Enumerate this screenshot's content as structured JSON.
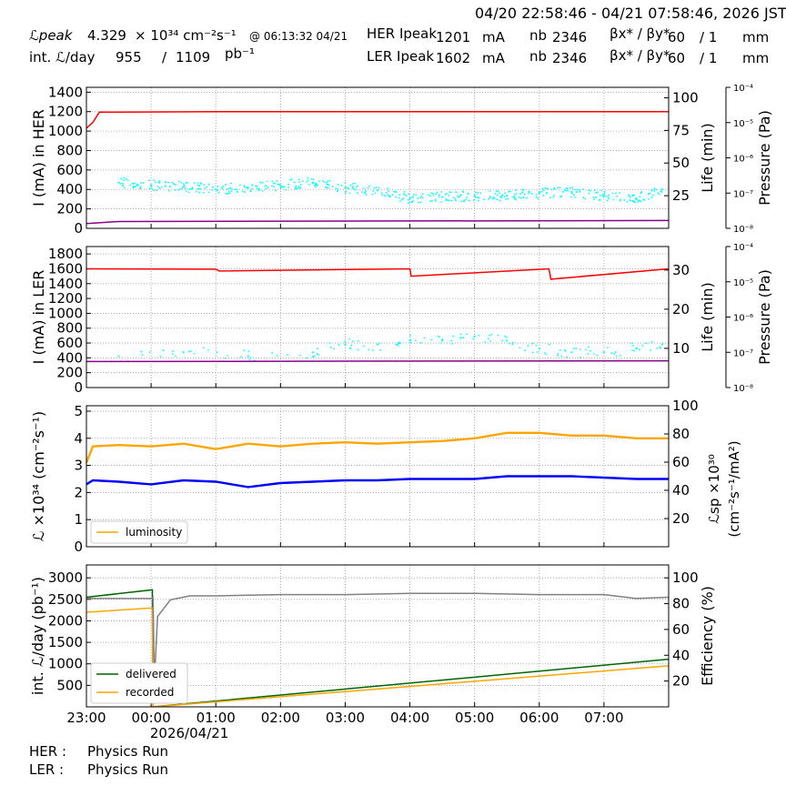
{
  "header": {
    "range": "04/20 22:58:46 - 04/21 07:58:46, 2026 JST",
    "lpeak_label": "ℒpeak",
    "lpeak_value": "4.329",
    "lpeak_unit": "× 10³⁴ cm⁻²s⁻¹",
    "lpeak_time": "@ 06:13:32 04/21",
    "intl_label": "int. ℒ/day",
    "intl_value": "955",
    "intl_sep": "/",
    "intl_total": "1109",
    "intl_unit": "pb⁻¹",
    "her_label": "HER Ipeak",
    "her_value": "1201",
    "her_unit": "mA",
    "ler_label": "LER Ipeak",
    "ler_value": "1602",
    "ler_unit": "mA",
    "nb_label": "nb",
    "her_nb": "2346",
    "ler_nb": "2346",
    "beta_label": "βx* / βy*",
    "her_beta_x": "60",
    "her_beta_y": "/ 1",
    "ler_beta_x": "60",
    "ler_beta_y": "/ 1",
    "beta_unit": "mm"
  },
  "footer": {
    "her_label": "HER :",
    "her_status": "Physics Run",
    "ler_label": "LER :",
    "ler_status": "Physics Run"
  },
  "chart_data": [
    {
      "type": "line",
      "ylabel": "I (mA) in HER",
      "ylim": [
        0,
        1450
      ],
      "yticks": [
        0,
        200,
        400,
        600,
        800,
        1000,
        1200,
        1400
      ],
      "y2label": "Life (min)",
      "y2lim": [
        0,
        108
      ],
      "y2ticks": [
        25,
        50,
        75,
        100
      ],
      "y3label": "Pressure (Pa)",
      "y3ticks": [
        "10⁻⁸",
        "10⁻⁷",
        "10⁻⁶",
        "10⁻⁵",
        "10⁻⁴"
      ],
      "grid": true,
      "series": [
        {
          "color": "#ff0000",
          "x": [
            0,
            0.1,
            0.2,
            2,
            5,
            7.15,
            9
          ],
          "y": [
            1030,
            1090,
            1195,
            1199,
            1199,
            1199,
            1199
          ]
        },
        {
          "color": "#00ffff",
          "style": "dots",
          "x": [
            0.5,
            1,
            1.5,
            2,
            2.5,
            3,
            3.5,
            4,
            4.5,
            5,
            5.5,
            6,
            6.5,
            7,
            7.5,
            8,
            8.5,
            8.9
          ],
          "y": [
            35,
            33,
            32,
            30,
            31,
            33,
            35,
            31,
            29,
            23,
            24,
            25,
            25,
            27,
            28,
            25,
            23,
            30
          ]
        },
        {
          "color": "#8b008b",
          "x": [
            0,
            0.5,
            9
          ],
          "y": [
            50,
            70,
            80
          ]
        }
      ]
    },
    {
      "type": "line",
      "ylabel": "I (mA) in LER",
      "ylim": [
        0,
        1900
      ],
      "yticks": [
        0,
        200,
        400,
        600,
        800,
        1000,
        1200,
        1400,
        1600,
        1800
      ],
      "y2label": "Life (min)",
      "y2lim": [
        0,
        36
      ],
      "y2ticks": [
        10,
        20,
        30
      ],
      "y3label": "Pressure (Pa)",
      "y3ticks": [
        "10⁻⁸",
        "10⁻⁷",
        "10⁻⁶",
        "10⁻⁵",
        "10⁻⁴"
      ],
      "grid": true,
      "series": [
        {
          "color": "#ff0000",
          "x": [
            0,
            2,
            2.05,
            5,
            5.02,
            7.15,
            7.18,
            9
          ],
          "y": [
            1600,
            1595,
            1570,
            1600,
            1500,
            1600,
            1460,
            1600
          ]
        },
        {
          "color": "#00ffff",
          "style": "dots",
          "x": [
            0.5,
            1.5,
            2.5,
            3.5,
            4,
            4.5,
            5,
            5.5,
            6,
            6.5,
            7,
            7.5,
            8,
            8.5,
            8.9
          ],
          "y": [
            8,
            9,
            8,
            9,
            11,
            11,
            12,
            12,
            13,
            12,
            10,
            9,
            9,
            10,
            11
          ]
        },
        {
          "color": "#8b008b",
          "x": [
            0,
            9
          ],
          "y": [
            350,
            360
          ]
        }
      ]
    },
    {
      "type": "line",
      "ylabel": "ℒ ×10³⁴ (cm⁻²s⁻¹)",
      "ylim": [
        0,
        5.2
      ],
      "yticks": [
        0,
        1,
        2,
        3,
        4,
        5
      ],
      "y2label": "ℒsp ×10³⁰ (cm⁻²s⁻¹/mA²)",
      "y2lim": [
        0,
        100
      ],
      "y2ticks": [
        20,
        40,
        60,
        80,
        100
      ],
      "legend": "lower-left",
      "grid": true,
      "series": [
        {
          "name": "luminosity",
          "color": "#ffa500",
          "x": [
            0,
            0.1,
            0.5,
            1,
            1.5,
            2,
            2.5,
            3,
            3.5,
            4,
            4.5,
            5,
            5.5,
            6,
            6.5,
            7,
            7.5,
            8,
            8.5,
            9
          ],
          "y": [
            3.1,
            3.7,
            3.75,
            3.7,
            3.8,
            3.6,
            3.8,
            3.7,
            3.8,
            3.85,
            3.8,
            3.85,
            3.9,
            4.0,
            4.2,
            4.2,
            4.1,
            4.1,
            4.0,
            4.0
          ]
        },
        {
          "color": "#0000ff",
          "x": [
            0,
            0.1,
            0.5,
            1,
            1.5,
            2,
            2.5,
            3,
            3.5,
            4,
            4.5,
            5,
            5.5,
            6,
            6.5,
            7,
            7.5,
            8,
            8.5,
            9
          ],
          "y": [
            2.3,
            2.45,
            2.4,
            2.3,
            2.45,
            2.4,
            2.2,
            2.35,
            2.4,
            2.45,
            2.45,
            2.5,
            2.5,
            2.5,
            2.6,
            2.6,
            2.6,
            2.55,
            2.5,
            2.5
          ]
        }
      ]
    },
    {
      "type": "line",
      "ylabel": "int. ℒ/day (pb⁻¹)",
      "ylim": [
        0,
        3300
      ],
      "yticks": [
        500,
        1000,
        1500,
        2000,
        2500,
        3000
      ],
      "y2label": "Efficiency (%)",
      "y2lim": [
        0,
        110
      ],
      "y2ticks": [
        20,
        40,
        60,
        80,
        100
      ],
      "xticks": [
        "23:00",
        "00:00",
        "01:00",
        "02:00",
        "03:00",
        "04:00",
        "05:00",
        "06:00",
        "07:00"
      ],
      "xdate": "2026/04/21",
      "legend": "lower-left",
      "grid": true,
      "series": [
        {
          "name": "delivered",
          "color": "#006400",
          "x": [
            0,
            1.02,
            1.03,
            1.1,
            9
          ],
          "y": [
            2550,
            2720,
            5,
            10,
            1109
          ]
        },
        {
          "name": "recorded",
          "color": "#ffa500",
          "x": [
            0,
            1.02,
            1.03,
            1.1,
            9
          ],
          "y": [
            2200,
            2300,
            5,
            8,
            955
          ]
        },
        {
          "color": "#808080",
          "x": [
            0,
            1.0,
            1.03,
            1.05,
            1.1,
            1.3,
            1.6,
            2.0,
            3,
            4,
            5,
            6,
            7,
            7.5,
            8,
            8.5,
            9
          ],
          "y": [
            84,
            84,
            85,
            20,
            70,
            83,
            86,
            86,
            87,
            87,
            88,
            88,
            87,
            87,
            87,
            84,
            85
          ]
        }
      ]
    }
  ]
}
